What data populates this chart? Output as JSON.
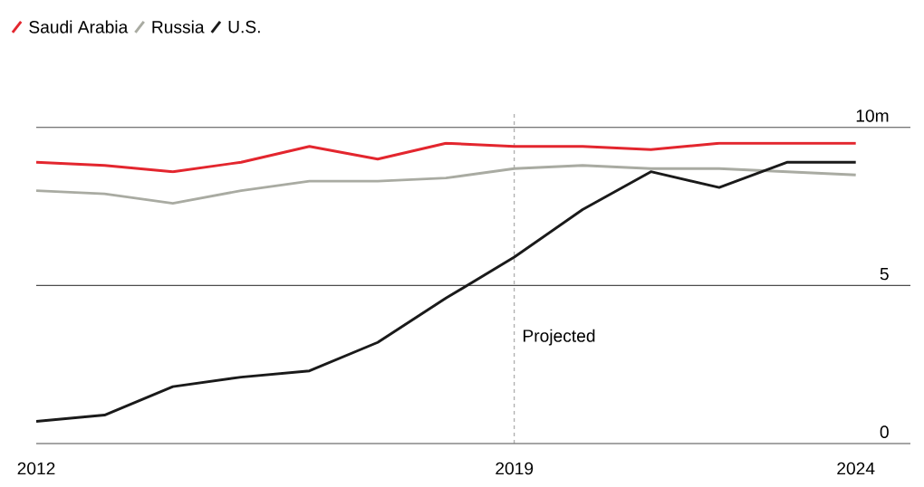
{
  "chart_data": {
    "type": "line",
    "x": [
      2012,
      2013,
      2014,
      2015,
      2016,
      2017,
      2018,
      2019,
      2020,
      2021,
      2022,
      2023,
      2024
    ],
    "series": [
      {
        "name": "Saudi Arabia",
        "color": "#e3262e",
        "values": [
          8.9,
          8.8,
          8.6,
          8.9,
          9.4,
          9.0,
          9.5,
          9.4,
          9.4,
          9.3,
          9.5,
          9.5,
          9.5
        ]
      },
      {
        "name": "Russia",
        "color": "#a9aba2",
        "values": [
          8.0,
          7.9,
          7.6,
          8.0,
          8.3,
          8.3,
          8.4,
          8.7,
          8.8,
          8.7,
          8.7,
          8.6,
          8.5
        ]
      },
      {
        "name": "U.S.",
        "color": "#1a1a1a",
        "values": [
          0.7,
          0.9,
          1.8,
          2.1,
          2.3,
          3.2,
          4.6,
          5.9,
          7.4,
          8.6,
          8.1,
          8.9,
          8.9
        ]
      }
    ],
    "xlim": [
      2012,
      2024.8
    ],
    "xticks": [
      2012,
      2019,
      2024
    ],
    "ylim": [
      0,
      10.5
    ],
    "yticks": [
      0,
      5,
      {
        "value": 10,
        "label": "10m"
      }
    ],
    "grid": "y",
    "legend": "top left",
    "marker": "none",
    "line_style": "solid",
    "ref_lines": [
      {
        "axis": "x",
        "value": 2019,
        "label": "Projected",
        "line_style": "dashed",
        "color": "#777777"
      }
    ]
  }
}
